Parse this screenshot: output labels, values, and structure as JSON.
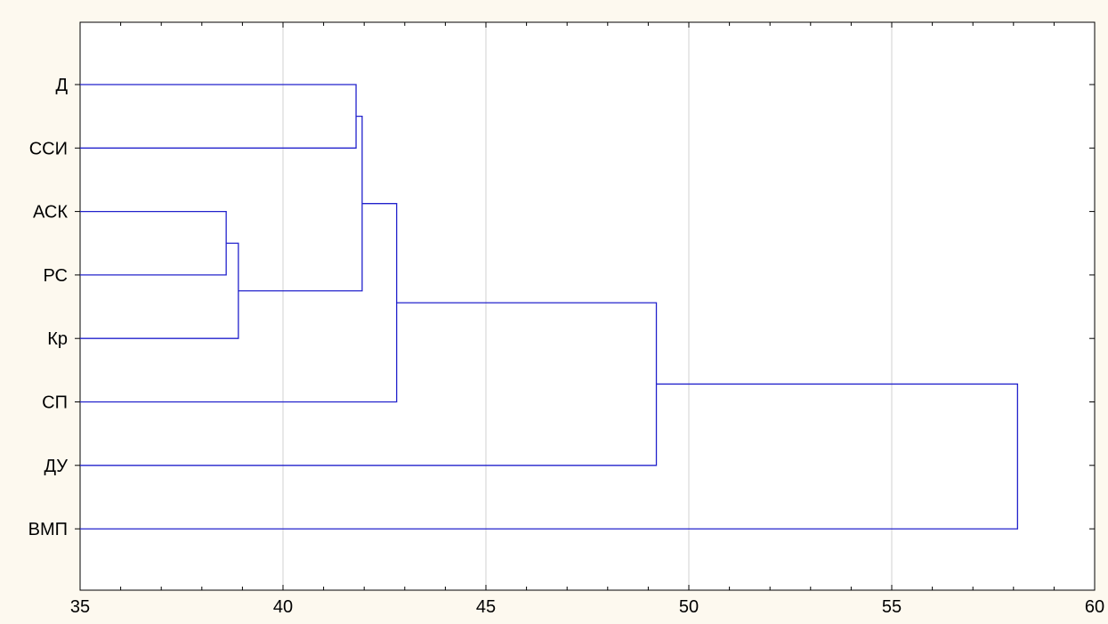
{
  "chart_data": {
    "type": "dendrogram",
    "orientation": "horizontal",
    "leaves": [
      "Д",
      "ССИ",
      "АСК",
      "РС",
      "Кр",
      "СП",
      "ДУ",
      "ВМП"
    ],
    "merges": [
      {
        "join": [
          "Д",
          "ССИ"
        ],
        "distance": 41.8
      },
      {
        "join": [
          "АСК",
          "РС"
        ],
        "distance": 38.6
      },
      {
        "join": [
          "АСК+РС",
          "Кр"
        ],
        "distance": 38.9
      },
      {
        "join": [
          "Д+ССИ",
          "АСК+РС+Кр"
        ],
        "distance": 41.95
      },
      {
        "join": [
          "Д+ССИ+АСК+РС+Кр",
          "СП"
        ],
        "distance": 42.8
      },
      {
        "join": [
          "Д+ССИ+АСК+РС+Кр+СП",
          "ДУ"
        ],
        "distance": 49.2
      },
      {
        "join": [
          "Д+ССИ+АСК+РС+Кр+СП+ДУ",
          "ВМП"
        ],
        "distance": 58.1
      }
    ],
    "xlim": [
      35,
      60
    ],
    "x_ticks": [
      35,
      40,
      45,
      50,
      55,
      60
    ],
    "grid": "vertical",
    "title": "",
    "xlabel": "",
    "ylabel": "",
    "colors": {
      "links": "#2222cc",
      "grid": "#d0d0d0",
      "background": "#fdf9ef",
      "plot_area": "#ffffff"
    }
  }
}
